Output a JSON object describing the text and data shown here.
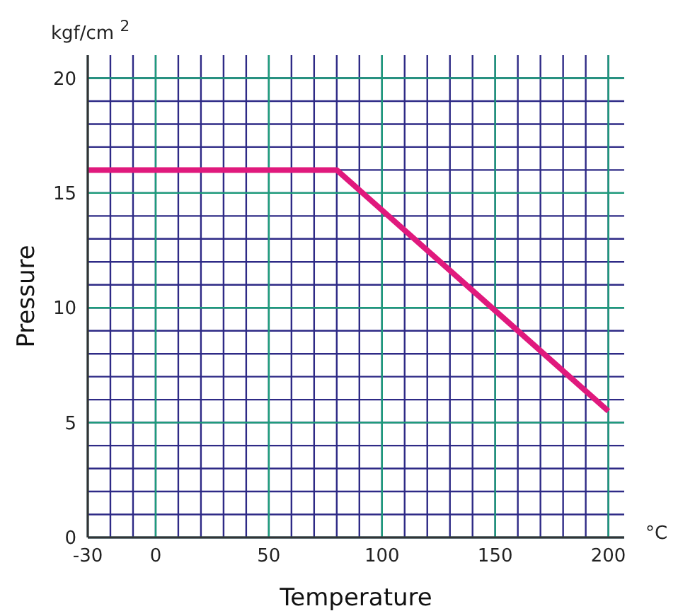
{
  "chart_data": {
    "type": "line",
    "xlabel": "Temperature",
    "ylabel": "Pressure",
    "annotations": [
      "kgf/cm $^{2}$",
      "°C"
    ],
    "x": [
      -30,
      80,
      200
    ],
    "series": [
      {
        "color": "#e0197d",
        "values": [
          16,
          16,
          5.5
        ]
      }
    ],
    "xlim": [
      -30,
      207
    ],
    "ylim": [
      0,
      21
    ],
    "xticks": [
      -30,
      {
        "value": -20,
        "label": null
      },
      {
        "value": -10,
        "label": null
      },
      0,
      {
        "value": 10,
        "label": null
      },
      {
        "value": 20,
        "label": null
      },
      {
        "value": 30,
        "label": null
      },
      {
        "value": 40,
        "label": null
      },
      50,
      {
        "value": 60,
        "label": null
      },
      {
        "value": 70,
        "label": null
      },
      {
        "value": 80,
        "label": null
      },
      {
        "value": 90,
        "label": null
      },
      100,
      {
        "value": 110,
        "label": null
      },
      {
        "value": 120,
        "label": null
      },
      {
        "value": 130,
        "label": null
      },
      {
        "value": 140,
        "label": null
      },
      150,
      {
        "value": 160,
        "label": null
      },
      {
        "value": 170,
        "label": null
      },
      {
        "value": 180,
        "label": null
      },
      {
        "value": 190,
        "label": null
      },
      200
    ],
    "yticks": [
      0,
      {
        "value": 1,
        "label": null
      },
      {
        "value": 2,
        "label": null
      },
      {
        "value": 3,
        "label": null
      },
      {
        "value": 4,
        "label": null
      },
      5,
      {
        "value": 6,
        "label": null
      },
      {
        "value": 7,
        "label": null
      },
      {
        "value": 8,
        "label": null
      },
      {
        "value": 9,
        "label": null
      },
      10,
      {
        "value": 11,
        "label": null
      },
      {
        "value": 12,
        "label": null
      },
      {
        "value": 13,
        "label": null
      },
      {
        "value": 14,
        "label": null
      },
      15,
      {
        "value": 16,
        "label": null
      },
      {
        "value": 17,
        "label": null
      },
      {
        "value": 18,
        "label": null
      },
      {
        "value": 19,
        "label": null
      },
      20
    ],
    "grid": true,
    "marker": "none",
    "line_style": "solid"
  }
}
